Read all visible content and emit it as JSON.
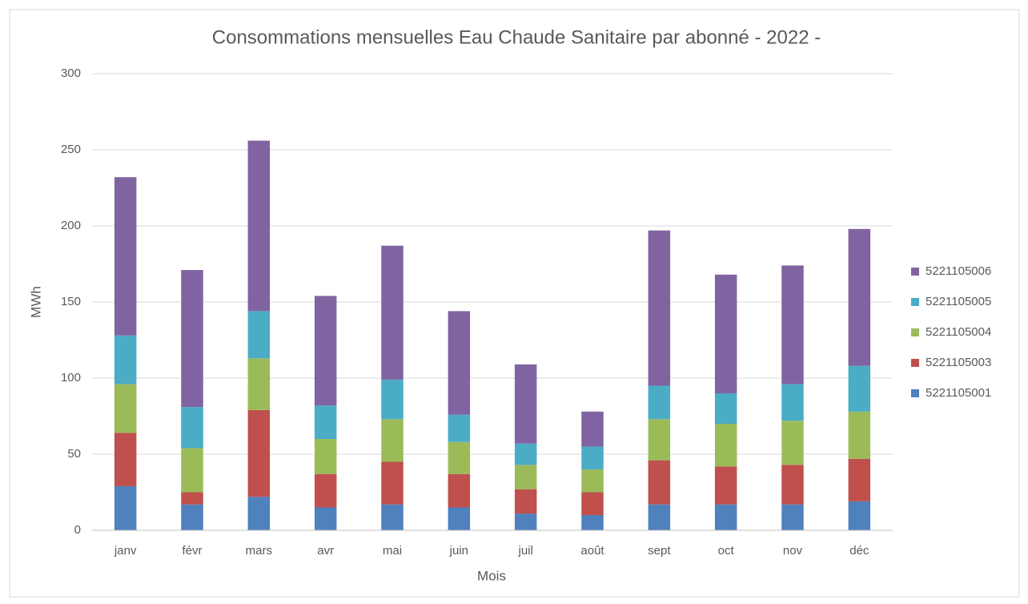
{
  "chart_data": {
    "type": "stacked_bar",
    "title": "Consommations  mensuelles Eau Chaude Sanitaire par abonné   - 2022 -",
    "x_label": "Mois",
    "y_label": "MWh",
    "categories": [
      "janv",
      "févr",
      "mars",
      "avr",
      "mai",
      "juin",
      "juil",
      "août",
      "sept",
      "oct",
      "nov",
      "déc"
    ],
    "series": [
      {
        "name": "5221105001",
        "color": "#4f81bd",
        "values": [
          29,
          17,
          22,
          15,
          17,
          15,
          11,
          10,
          17,
          17,
          17,
          19
        ]
      },
      {
        "name": "5221105003",
        "color": "#c0504d",
        "values": [
          35,
          8,
          57,
          22,
          28,
          22,
          16,
          15,
          29,
          25,
          26,
          28
        ]
      },
      {
        "name": "5221105004",
        "color": "#9bbb59",
        "values": [
          32,
          29,
          34,
          23,
          28,
          21,
          16,
          15,
          27,
          28,
          29,
          31
        ]
      },
      {
        "name": "5221105005",
        "color": "#4bacc6",
        "values": [
          32,
          27,
          31,
          22,
          26,
          18,
          14,
          15,
          22,
          20,
          24,
          30
        ]
      },
      {
        "name": "5221105006",
        "color": "#8064a2",
        "values": [
          104,
          90,
          112,
          72,
          88,
          68,
          52,
          23,
          102,
          78,
          78,
          90
        ]
      }
    ],
    "ylim": [
      0,
      300
    ],
    "yticks": [
      0,
      50,
      100,
      150,
      200,
      250,
      300
    ],
    "grid": true,
    "legend": "right"
  }
}
